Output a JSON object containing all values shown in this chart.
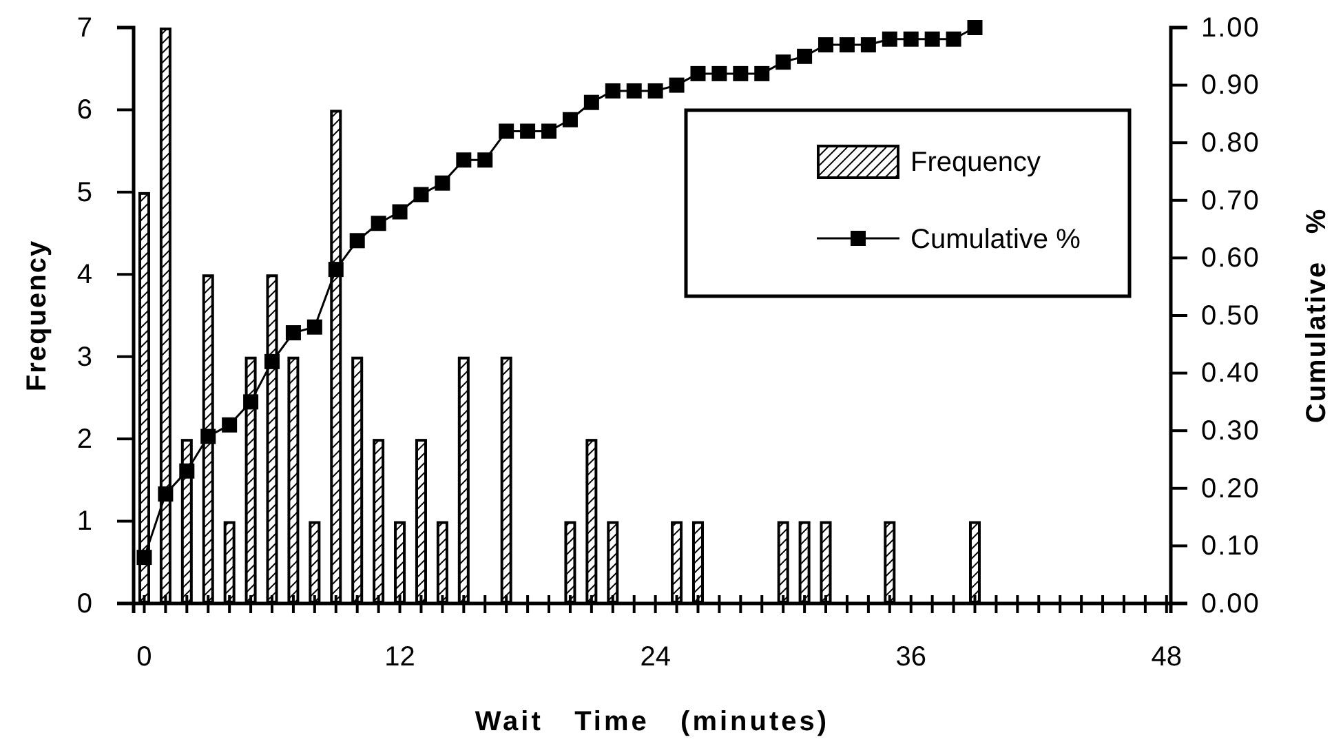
{
  "chart_data": {
    "type": "bar",
    "xlabel": "Wait   Time   (minutes)",
    "ylabel": "Frequency",
    "y2label": "Cumulative   %",
    "xlim": [
      -0.5,
      48.2
    ],
    "xticks": [
      0,
      {
        "value": 1,
        "label": null
      },
      {
        "value": 2,
        "label": null
      },
      {
        "value": 3,
        "label": null
      },
      {
        "value": 4,
        "label": null
      },
      {
        "value": 5,
        "label": null
      },
      {
        "value": 6,
        "label": null
      },
      {
        "value": 7,
        "label": null
      },
      {
        "value": 8,
        "label": null
      },
      {
        "value": 9,
        "label": null
      },
      {
        "value": 10,
        "label": null
      },
      {
        "value": 11,
        "label": null
      },
      12,
      {
        "value": 13,
        "label": null
      },
      {
        "value": 14,
        "label": null
      },
      {
        "value": 15,
        "label": null
      },
      {
        "value": 16,
        "label": null
      },
      {
        "value": 17,
        "label": null
      },
      {
        "value": 18,
        "label": null
      },
      {
        "value": 19,
        "label": null
      },
      {
        "value": 20,
        "label": null
      },
      {
        "value": 21,
        "label": null
      },
      {
        "value": 22,
        "label": null
      },
      {
        "value": 23,
        "label": null
      },
      24,
      {
        "value": 25,
        "label": null
      },
      {
        "value": 26,
        "label": null
      },
      {
        "value": 27,
        "label": null
      },
      {
        "value": 28,
        "label": null
      },
      {
        "value": 29,
        "label": null
      },
      {
        "value": 30,
        "label": null
      },
      {
        "value": 31,
        "label": null
      },
      {
        "value": 32,
        "label": null
      },
      {
        "value": 33,
        "label": null
      },
      {
        "value": 34,
        "label": null
      },
      {
        "value": 35,
        "label": null
      },
      36,
      {
        "value": 37,
        "label": null
      },
      {
        "value": 38,
        "label": null
      },
      {
        "value": 39,
        "label": null
      },
      {
        "value": 40,
        "label": null
      },
      {
        "value": 41,
        "label": null
      },
      {
        "value": 42,
        "label": null
      },
      {
        "value": 43,
        "label": null
      },
      {
        "value": 44,
        "label": null
      },
      {
        "value": 45,
        "label": null
      },
      {
        "value": 46,
        "label": null
      },
      {
        "value": 47,
        "label": null
      },
      48
    ],
    "ylim": [
      0,
      7
    ],
    "yticks": [
      0,
      1,
      2,
      3,
      4,
      5,
      6,
      7
    ],
    "y2lim": [
      0,
      1
    ],
    "y2ticks": [
      {
        "value": 0,
        "label": "0.00"
      },
      {
        "value": 0.1,
        "label": "0.10"
      },
      {
        "value": 0.2,
        "label": "0.20"
      },
      {
        "value": 0.3,
        "label": "0.30"
      },
      {
        "value": 0.4,
        "label": "0.40"
      },
      {
        "value": 0.5,
        "label": "0.50"
      },
      {
        "value": 0.6,
        "label": "0.60"
      },
      {
        "value": 0.7,
        "label": "0.70"
      },
      {
        "value": 0.8,
        "label": "0.80"
      },
      {
        "value": 0.9,
        "label": "0.90"
      },
      {
        "value": 1,
        "label": "1.00"
      }
    ],
    "grid": false,
    "legend": "top right",
    "series": [
      {
        "name": "Frequency",
        "color": "#000000",
        "x": [
          0,
          1,
          2,
          3,
          4,
          5,
          6,
          7,
          8,
          9,
          10,
          11,
          12,
          13,
          14,
          15,
          17,
          20,
          21,
          22,
          25,
          26,
          30,
          31,
          32,
          35,
          39
        ],
        "values": [
          5,
          7,
          2,
          4,
          1,
          3,
          4,
          3,
          1,
          6,
          3,
          2,
          1,
          2,
          1,
          3,
          3,
          1,
          2,
          1,
          1,
          1,
          1,
          1,
          1,
          1,
          1
        ]
      },
      {
        "name": "Cumulative %",
        "type": "line",
        "axis": "y2",
        "color": "#000000",
        "marker": "square",
        "line_style": "solid",
        "x": [
          0,
          1,
          2,
          3,
          4,
          5,
          6,
          7,
          8,
          9,
          10,
          11,
          12,
          13,
          14,
          15,
          16,
          17,
          18,
          19,
          20,
          21,
          22,
          23,
          24,
          25,
          26,
          27,
          28,
          29,
          30,
          31,
          32,
          33,
          34,
          35,
          36,
          37,
          38,
          39
        ],
        "values": [
          0.08,
          0.19,
          0.23,
          0.29,
          0.31,
          0.35,
          0.42,
          0.47,
          0.48,
          0.58,
          0.63,
          0.66,
          0.68,
          0.71,
          0.73,
          0.77,
          0.77,
          0.82,
          0.82,
          0.82,
          0.84,
          0.87,
          0.89,
          0.89,
          0.89,
          0.9,
          0.92,
          0.92,
          0.92,
          0.92,
          0.94,
          0.95,
          0.97,
          0.97,
          0.97,
          0.98,
          0.98,
          0.98,
          0.98,
          1.0
        ]
      }
    ]
  }
}
